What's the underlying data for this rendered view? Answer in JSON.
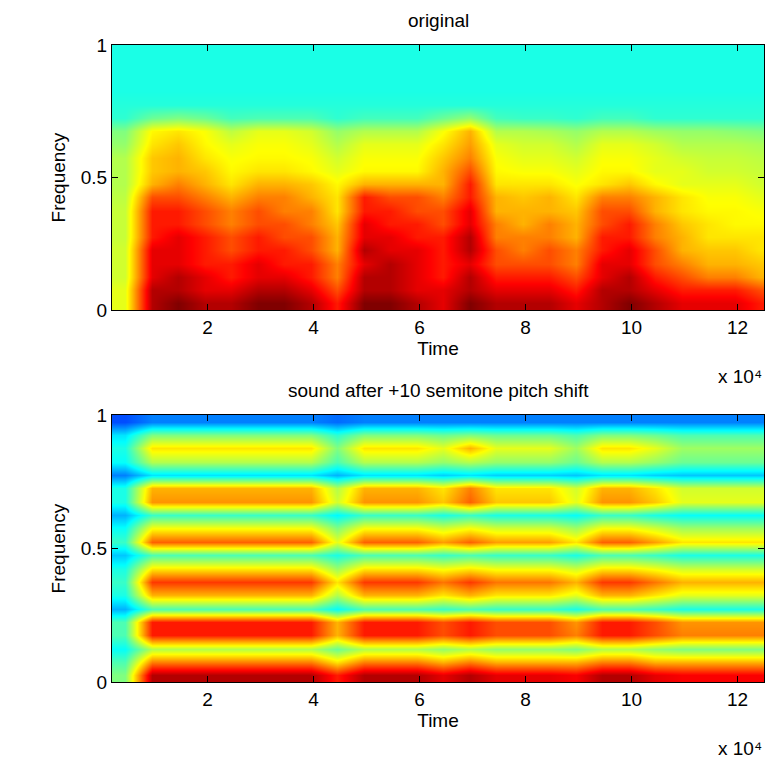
{
  "chart_data": [
    {
      "type": "heatmap",
      "title": "original",
      "xlabel": "Time",
      "ylabel": "Frequency",
      "annotations": [
        "x 10⁴"
      ],
      "x": [
        0.45,
        0.95,
        1.45,
        1.95,
        2.45,
        2.95,
        3.45,
        3.95,
        4.45,
        4.95,
        5.45,
        5.95,
        6.45,
        6.95,
        7.45,
        7.95,
        8.45,
        8.95,
        9.45,
        9.95,
        10.45,
        10.95,
        11.45,
        11.95,
        12.45
      ],
      "y": [
        0.025,
        0.075,
        0.125,
        0.175,
        0.225,
        0.275,
        0.325,
        0.375,
        0.425,
        0.475,
        0.525,
        0.575,
        0.625,
        0.675,
        0.725,
        0.775,
        0.825,
        0.875,
        0.925,
        0.975
      ],
      "z": [
        [
          6,
          9.5,
          10,
          9.5,
          9.5,
          10,
          10,
          9.5,
          8.5,
          10,
          10,
          9.5,
          9,
          10,
          9.5,
          9.5,
          9.5,
          9,
          9.5,
          10,
          9.5,
          9,
          9,
          9,
          8.5
        ],
        [
          6,
          9.5,
          9.5,
          9,
          9,
          9.5,
          9.5,
          9,
          8,
          9.5,
          9.5,
          9,
          9,
          9.5,
          9,
          9,
          9,
          8.5,
          9.5,
          9.5,
          9,
          8.5,
          8.5,
          8.5,
          8
        ],
        [
          5.8,
          9,
          9.5,
          9,
          8.5,
          9,
          9,
          8.5,
          7.5,
          9.5,
          9.5,
          9,
          8.5,
          9.5,
          8.5,
          8.5,
          8.5,
          8,
          9,
          9.5,
          8.5,
          8,
          7.5,
          7.5,
          7
        ],
        [
          5.8,
          9,
          9,
          8.5,
          8.5,
          9,
          8.5,
          8.5,
          7.5,
          9,
          9.5,
          9,
          8.5,
          9,
          8,
          8,
          8,
          7.5,
          9,
          9,
          8,
          7.5,
          7,
          7,
          6.8
        ],
        [
          5.8,
          9,
          9,
          8.5,
          8,
          8.5,
          8.5,
          8,
          7,
          9.5,
          9,
          9,
          8.5,
          9.5,
          8,
          7.5,
          8,
          7.5,
          8.5,
          9,
          8,
          7,
          6.8,
          6.8,
          6.5
        ],
        [
          5.7,
          8.5,
          9,
          8.5,
          8,
          8.5,
          8,
          8,
          7,
          9,
          9,
          8.5,
          8.5,
          9.5,
          7.5,
          7.5,
          7.5,
          7,
          8.5,
          8.5,
          7.5,
          7,
          6.5,
          6.5,
          6.5
        ],
        [
          5.7,
          8.5,
          8.5,
          8,
          7.5,
          8,
          8,
          7.5,
          6.8,
          9,
          8.5,
          8.5,
          8,
          9,
          7.5,
          7,
          7.5,
          7,
          8,
          8.5,
          7.5,
          6.8,
          6.5,
          6.3,
          6.3
        ],
        [
          5.7,
          8.5,
          8.5,
          8,
          7.5,
          8,
          7.5,
          7.5,
          6.5,
          8.5,
          8.5,
          8,
          8,
          9,
          7,
          7,
          7,
          6.8,
          8,
          8,
          7,
          6.5,
          6.3,
          6.3,
          6.2
        ],
        [
          5.6,
          8,
          8,
          7.5,
          7,
          7.5,
          7.5,
          7,
          6.5,
          8.5,
          8,
          8,
          7.5,
          8.5,
          7,
          6.8,
          7,
          6.5,
          7.5,
          7.5,
          7,
          6.5,
          6.2,
          6.2,
          6
        ],
        [
          5.5,
          7,
          7.5,
          7,
          6.5,
          7,
          7,
          6.8,
          6.3,
          7,
          7,
          7,
          7,
          8.5,
          6.5,
          6.5,
          6.5,
          6.2,
          6.5,
          6.8,
          6.3,
          6,
          6,
          6,
          5.8
        ],
        [
          5.5,
          6.8,
          7,
          6.8,
          6.3,
          6.5,
          6.5,
          6.3,
          6,
          6.3,
          6.3,
          6.3,
          7,
          8,
          6.3,
          6.2,
          6.2,
          6,
          6.3,
          6.3,
          6,
          6,
          5.8,
          5.8,
          5.7
        ],
        [
          5.5,
          6.8,
          7,
          6.5,
          6.2,
          6.3,
          6.3,
          6.2,
          5.8,
          6.2,
          6.2,
          6.2,
          6.8,
          7.5,
          6.2,
          6,
          6,
          5.8,
          6.2,
          6.2,
          6,
          5.8,
          5.7,
          5.7,
          5.6
        ],
        [
          5.2,
          6.5,
          6.8,
          6.3,
          6,
          6.2,
          6.2,
          6,
          5.5,
          6,
          6,
          6,
          6.5,
          7.2,
          6,
          5.8,
          5.8,
          5.5,
          6,
          6,
          5.8,
          5.5,
          5.5,
          5.5,
          5.4
        ],
        [
          5,
          6.3,
          6.5,
          6.2,
          5.6,
          6,
          6,
          5.8,
          5.2,
          5.5,
          5.5,
          5.5,
          6.2,
          7,
          5.5,
          5.5,
          5.4,
          5.2,
          5.5,
          5.5,
          5.3,
          5.2,
          5.2,
          5.1,
          5
        ],
        [
          4.2,
          4.8,
          5,
          4.8,
          4.4,
          4.5,
          4.5,
          4.5,
          4.2,
          4.4,
          4.4,
          4.4,
          4.8,
          5.2,
          4.4,
          4.3,
          4.3,
          4.2,
          4.4,
          4.4,
          4.2,
          4.2,
          4.2,
          4.2,
          4.2
        ],
        [
          4.1,
          4.1,
          4.1,
          4.1,
          4.1,
          4.1,
          4.1,
          4.1,
          4.1,
          4.1,
          4.1,
          4.1,
          4.1,
          4.1,
          4.1,
          4.1,
          4.1,
          4.1,
          4.1,
          4.1,
          4.1,
          4.1,
          4.1,
          4.1,
          4.1
        ],
        [
          4,
          4,
          4,
          4,
          4,
          4,
          4,
          4,
          4,
          4,
          4,
          4,
          4,
          4,
          4,
          4,
          4,
          4,
          4,
          4,
          4,
          4,
          4,
          4,
          4
        ],
        [
          4,
          4,
          4,
          4,
          4,
          4,
          4,
          4,
          4,
          4,
          4,
          4,
          4,
          4,
          4,
          4,
          4,
          4,
          4,
          4,
          4,
          4,
          4,
          4,
          4
        ],
        [
          4,
          4,
          4,
          4,
          4,
          4,
          4,
          4,
          4,
          4,
          4,
          4,
          4,
          4,
          4,
          4,
          4,
          4,
          4,
          4,
          4,
          4,
          4,
          4,
          4
        ],
        [
          4,
          4,
          4,
          4,
          4,
          4,
          4,
          4,
          4,
          4,
          4,
          4,
          4,
          4,
          4,
          4,
          4,
          4,
          4,
          4,
          4,
          4,
          4,
          4,
          4
        ]
      ],
      "zlim": [
        0,
        10
      ],
      "xlim": [
        0.2,
        12.5
      ],
      "xticks": [
        2,
        4,
        6,
        8,
        10,
        12
      ],
      "ylim": [
        0,
        1
      ],
      "yticks": [
        0,
        0.5,
        1
      ]
    },
    {
      "type": "heatmap",
      "title": "sound after +10 semitone pitch shift",
      "xlabel": "Time",
      "ylabel": "Frequency",
      "annotations": [
        "x 10⁴"
      ],
      "x": [
        0.45,
        0.95,
        1.45,
        1.95,
        2.45,
        2.95,
        3.45,
        3.95,
        4.45,
        4.95,
        5.45,
        5.95,
        6.45,
        6.95,
        7.45,
        7.95,
        8.45,
        8.95,
        9.45,
        9.95,
        10.45,
        10.95,
        11.45,
        11.95,
        12.45
      ],
      "y": [
        0.025,
        0.075,
        0.125,
        0.175,
        0.225,
        0.275,
        0.325,
        0.375,
        0.425,
        0.475,
        0.525,
        0.575,
        0.625,
        0.675,
        0.725,
        0.775,
        0.825,
        0.875,
        0.925,
        0.975
      ],
      "z": [
        [
          5,
          9.5,
          9.5,
          9.5,
          9.5,
          9.5,
          9.5,
          9.5,
          8.5,
          9.5,
          9.5,
          9.5,
          9,
          9.5,
          9,
          9,
          9,
          8.8,
          9.5,
          9.5,
          9,
          8.8,
          8.8,
          8.8,
          8.8
        ],
        [
          4.5,
          7.5,
          7.5,
          7.5,
          7.5,
          7.5,
          7.5,
          7.5,
          6.5,
          7.5,
          7.5,
          7.5,
          7,
          7.5,
          7,
          7,
          7,
          7,
          7.5,
          7.5,
          7,
          7,
          7,
          7,
          7
        ],
        [
          3.8,
          5.5,
          5.5,
          5.5,
          5.5,
          5.5,
          5.5,
          5.5,
          4.8,
          5.5,
          5.5,
          5.5,
          5.2,
          5.5,
          5.2,
          5.2,
          5.2,
          5,
          5.5,
          5.5,
          5.2,
          5,
          5,
          5,
          5
        ],
        [
          4.5,
          8.5,
          8.5,
          8.5,
          8.5,
          8.5,
          8.5,
          8.5,
          7,
          8.5,
          8.5,
          8.5,
          8,
          8.5,
          8,
          8,
          8,
          7.5,
          8.5,
          8.5,
          8,
          7.5,
          7.5,
          7.5,
          7.5
        ],
        [
          4.5,
          8.5,
          8.5,
          8.5,
          8.5,
          8.5,
          8.5,
          8.5,
          7,
          8.5,
          8.5,
          8.5,
          8,
          8.5,
          8,
          8,
          8,
          7.3,
          8.5,
          8.5,
          8,
          7.3,
          7.3,
          7.3,
          7.3
        ],
        [
          3,
          4.5,
          4.5,
          4.5,
          4.5,
          4.5,
          4.5,
          4.5,
          3.8,
          4.5,
          4.5,
          4.5,
          4.3,
          4.5,
          4.3,
          4.3,
          4.3,
          4,
          4.5,
          4.5,
          4.3,
          4,
          4,
          4,
          4
        ],
        [
          4,
          7,
          7,
          7,
          7,
          7,
          7,
          7,
          5.5,
          7,
          7,
          7,
          6.5,
          7,
          6.5,
          6.5,
          6.5,
          6,
          7,
          7,
          6.5,
          6,
          6,
          6,
          6
        ],
        [
          4.3,
          8.2,
          8.2,
          8.2,
          8.2,
          8.2,
          8.2,
          8.2,
          6.5,
          8.2,
          8.2,
          8.2,
          7.6,
          8.2,
          7.6,
          7.6,
          7.6,
          7,
          8.2,
          8.2,
          7.6,
          7,
          7,
          7,
          7
        ],
        [
          4,
          6.5,
          6.5,
          6.5,
          6.5,
          6.5,
          6.5,
          6.5,
          5.3,
          6.5,
          6.5,
          6.5,
          6.2,
          6.5,
          6.2,
          6.2,
          6.2,
          5.8,
          6.5,
          6.5,
          6.2,
          5.8,
          5.8,
          5.8,
          5.8
        ],
        [
          3.2,
          4.5,
          4.5,
          4.5,
          4.5,
          4.5,
          4.5,
          4.5,
          4,
          4.5,
          4.5,
          4.5,
          4.3,
          4.5,
          4.3,
          4.3,
          4.3,
          4,
          4.5,
          4.5,
          4.3,
          4,
          4,
          4,
          4
        ],
        [
          4.3,
          7.8,
          7.8,
          7.8,
          7.8,
          7.8,
          7.8,
          7.8,
          6,
          7.8,
          7.8,
          7.8,
          7.2,
          7.8,
          7.2,
          7.2,
          7.2,
          6.5,
          7.8,
          7.8,
          7.2,
          6.5,
          6.5,
          6.5,
          6.5
        ],
        [
          3.8,
          6.2,
          6.2,
          6.2,
          6.2,
          6.2,
          6.2,
          6.2,
          5,
          6.2,
          6.2,
          6.2,
          5.8,
          6.2,
          5.8,
          5.8,
          5.8,
          5.3,
          6.2,
          6.2,
          5.8,
          5.3,
          5.3,
          5.3,
          5.3
        ],
        [
          3,
          4.3,
          4.3,
          4.3,
          4.3,
          4.3,
          4.3,
          4.3,
          3.7,
          4.3,
          4.3,
          4.3,
          4,
          4.3,
          4,
          4,
          4,
          3.8,
          4.3,
          4.3,
          4,
          3.8,
          3.8,
          3.8,
          3.8
        ],
        [
          4,
          7.3,
          7.3,
          7.3,
          7.3,
          7.3,
          7.3,
          7.3,
          5.8,
          7.3,
          7.3,
          7.3,
          6.8,
          7.8,
          6.8,
          6.8,
          6.8,
          6,
          7.3,
          7.3,
          6.8,
          6,
          6,
          6,
          6
        ],
        [
          4,
          7,
          7,
          7,
          7,
          7,
          7,
          7,
          5.5,
          7,
          7,
          7,
          6.5,
          7.5,
          6.5,
          6.5,
          6.5,
          5.8,
          7,
          7,
          6.5,
          5.8,
          5.8,
          5.8,
          5.8
        ],
        [
          2.5,
          3.5,
          3.5,
          3.5,
          3.5,
          3.5,
          3.5,
          3.5,
          3,
          3.5,
          3.5,
          3.5,
          3.3,
          3.5,
          3.3,
          3.3,
          3.3,
          3.2,
          3.5,
          3.5,
          3.3,
          3.2,
          3.2,
          3.2,
          3.2
        ],
        [
          3.8,
          5.5,
          5.5,
          5.5,
          5.5,
          5.5,
          5.5,
          5.5,
          4.5,
          5.5,
          5.5,
          5.5,
          5.2,
          5.5,
          5.2,
          5.2,
          5.2,
          4.8,
          5.5,
          5.5,
          5.2,
          4.8,
          4.8,
          4.8,
          4.8
        ],
        [
          4,
          6.5,
          6.5,
          6.5,
          6.5,
          6.5,
          6.5,
          6.5,
          5,
          6.5,
          6.5,
          6.5,
          6,
          7,
          6,
          6,
          6,
          5.3,
          6.5,
          6.5,
          6,
          5.3,
          5.3,
          5.3,
          5.3
        ],
        [
          3.5,
          5,
          5,
          5,
          5,
          5,
          5,
          5,
          4.2,
          5,
          5,
          5,
          4.8,
          5,
          4.8,
          4.8,
          4.8,
          4.5,
          5,
          5,
          4.8,
          4.5,
          4.5,
          4.5,
          4.5
        ],
        [
          2,
          2.5,
          2.5,
          2.5,
          2.5,
          2.5,
          2.5,
          2.5,
          2.3,
          2.5,
          2.5,
          2.5,
          2.5,
          2.5,
          2.5,
          2.5,
          2.5,
          2.5,
          2.5,
          2.5,
          2.5,
          2.5,
          2.5,
          2.5,
          2.5
        ]
      ],
      "zlim": [
        0,
        10
      ],
      "xlim": [
        0.2,
        12.5
      ],
      "xticks": [
        2,
        4,
        6,
        8,
        10,
        12
      ],
      "ylim": [
        0,
        1
      ],
      "yticks": [
        0,
        0.5,
        1
      ]
    }
  ]
}
